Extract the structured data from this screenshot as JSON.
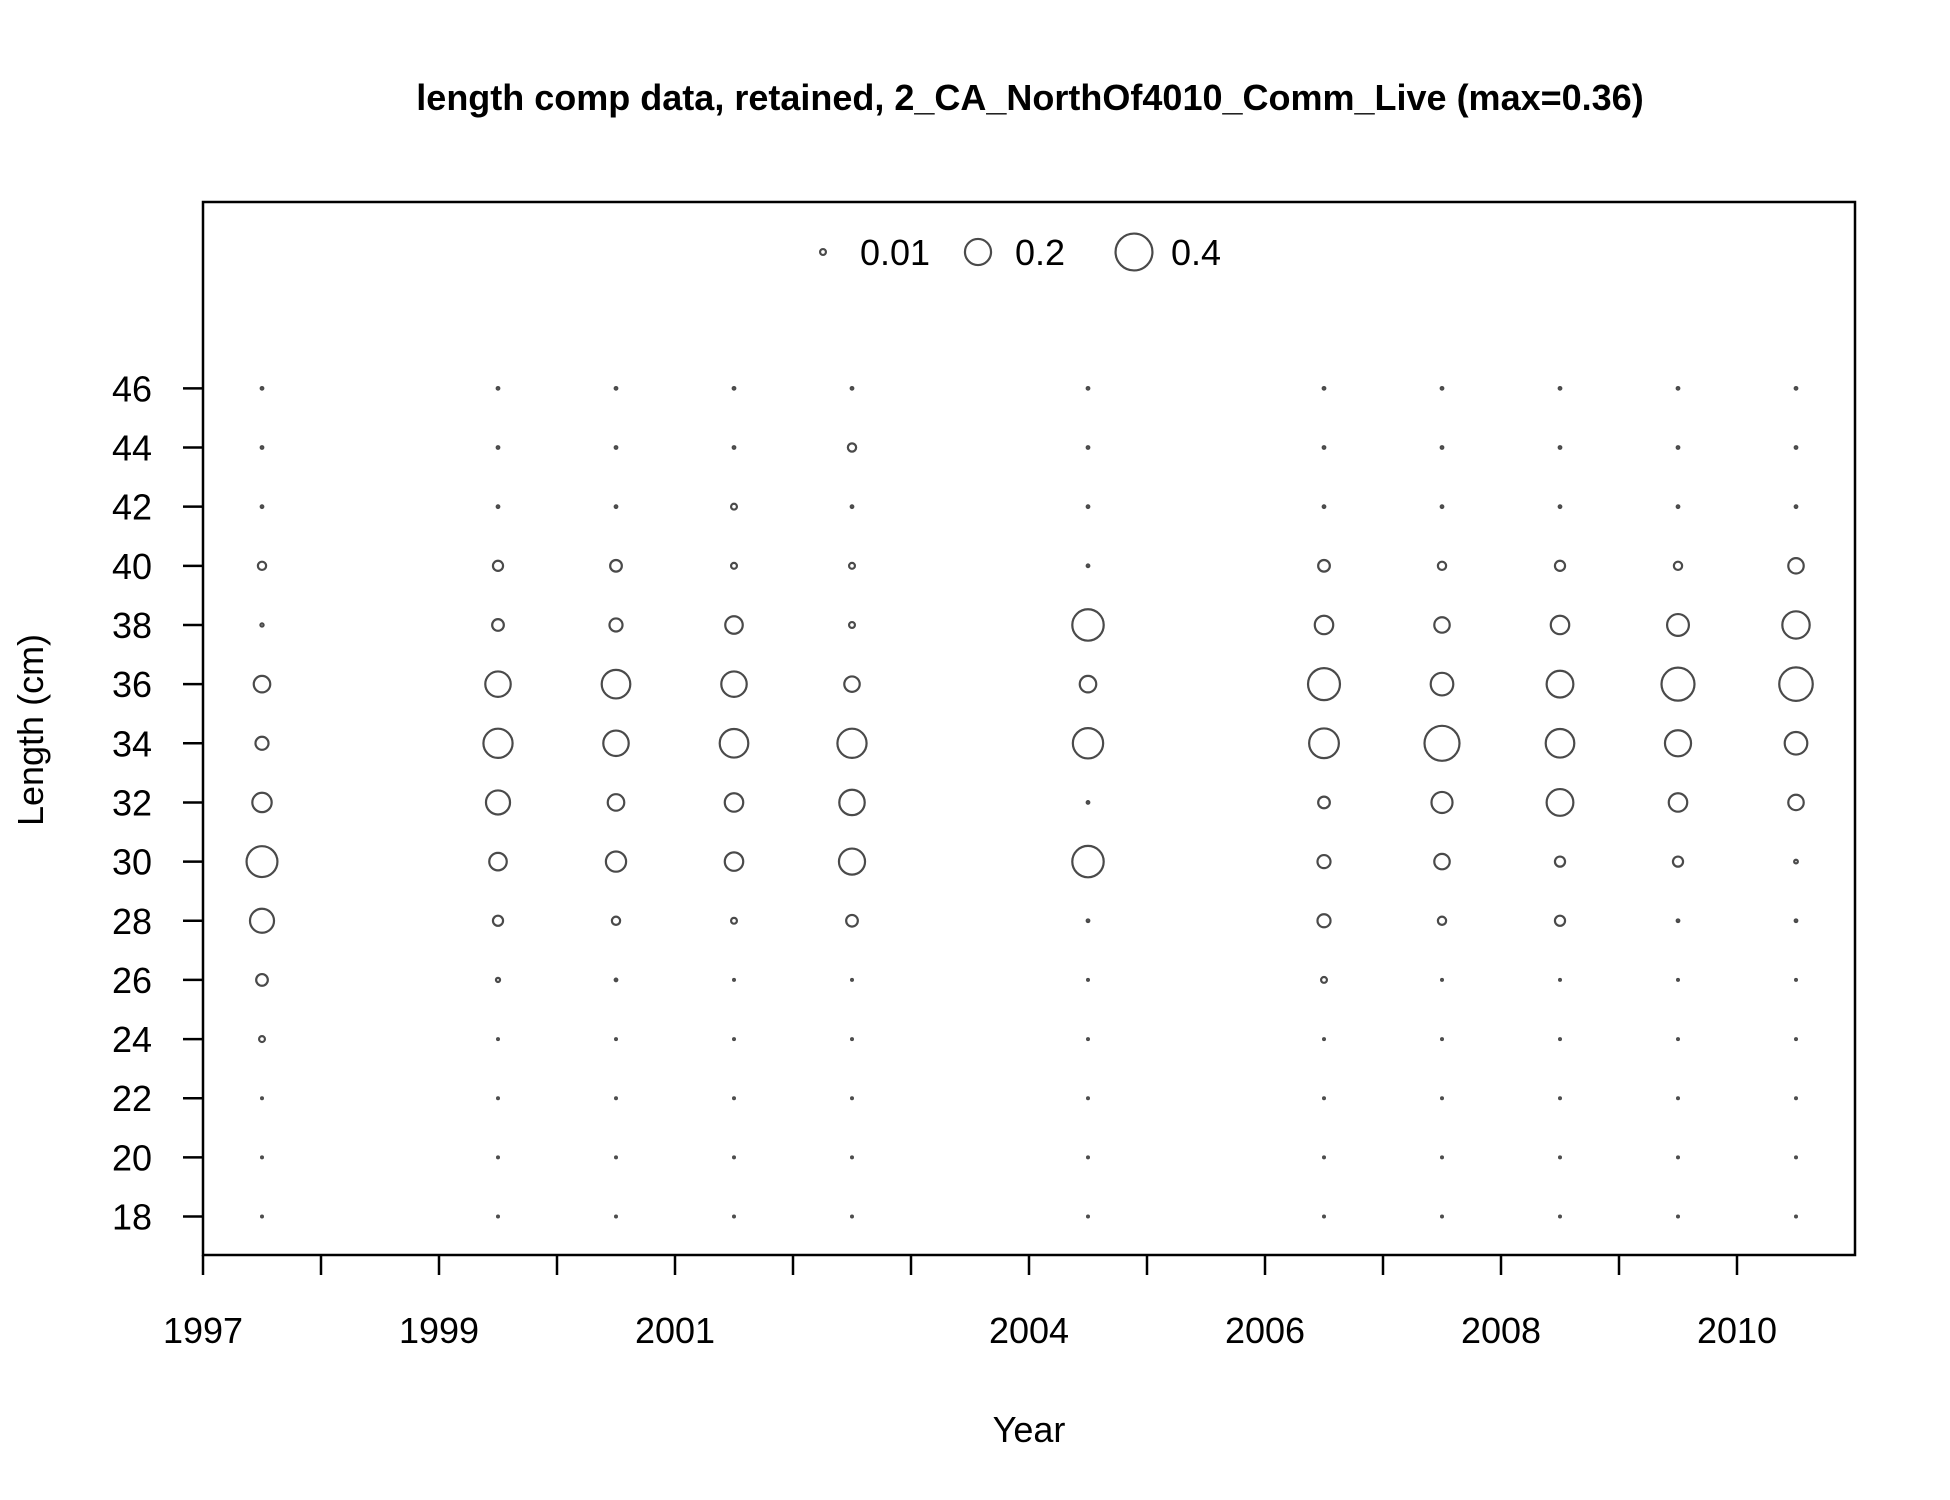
{
  "chart_data": {
    "type": "scatter",
    "title": "length comp data, retained, 2_CA_NorthOf4010_Comm_Live (max=0.36)",
    "xlabel": "Year",
    "ylabel": "Length (cm)",
    "xlim": [
      1997,
      2011
    ],
    "ylim": [
      16.7,
      52.3
    ],
    "x_ticks": [
      1997,
      1998,
      1999,
      2000,
      2001,
      2002,
      2003,
      2004,
      2005,
      2006,
      2007,
      2008,
      2009,
      2010
    ],
    "x_tick_labels": [
      "1997",
      "",
      "1999",
      "",
      "2001",
      "",
      "",
      "2004",
      "",
      "2006",
      "",
      "2008",
      "",
      "2010"
    ],
    "y_ticks": [
      18,
      20,
      22,
      24,
      26,
      28,
      30,
      32,
      34,
      36,
      38,
      40,
      42,
      44,
      46
    ],
    "y_tick_labels": [
      "18",
      "20",
      "22",
      "24",
      "26",
      "28",
      "30",
      "32",
      "34",
      "36",
      "38",
      "40",
      "42",
      "44",
      "46"
    ],
    "grid": false,
    "legend": {
      "placement": "top-center",
      "entries": [
        {
          "label": "0.01",
          "value": 0.01
        },
        {
          "label": "0.2",
          "value": 0.2
        },
        {
          "label": "0.4",
          "value": 0.4
        }
      ]
    },
    "size_scale_max": 0.36,
    "lengths": [
      18,
      20,
      22,
      24,
      26,
      28,
      30,
      32,
      34,
      36,
      38,
      40,
      42,
      44,
      46
    ],
    "series": [
      {
        "year": 1997.5,
        "values": [
          0,
          0,
          0,
          0.01,
          0.04,
          0.17,
          0.28,
          0.11,
          0.05,
          0.08,
          0.003,
          0.02,
          0.002,
          0.002,
          0.002
        ]
      },
      {
        "year": 1999.5,
        "values": [
          0,
          0,
          0,
          0,
          0.005,
          0.03,
          0.09,
          0.17,
          0.25,
          0.19,
          0.04,
          0.03,
          0.002,
          0.002,
          0.002
        ]
      },
      {
        "year": 2000.5,
        "values": [
          0,
          0,
          0,
          0,
          0.002,
          0.02,
          0.12,
          0.08,
          0.19,
          0.24,
          0.05,
          0.04,
          0.002,
          0.002,
          0.002
        ]
      },
      {
        "year": 2001.5,
        "values": [
          0,
          0,
          0,
          0,
          0,
          0.01,
          0.1,
          0.1,
          0.24,
          0.19,
          0.09,
          0.01,
          0.01,
          0.002,
          0.002
        ]
      },
      {
        "year": 2002.5,
        "values": [
          0,
          0,
          0,
          0,
          0,
          0.04,
          0.2,
          0.19,
          0.25,
          0.07,
          0.01,
          0.01,
          0.002,
          0.02,
          0.002
        ]
      },
      {
        "year": 2004.5,
        "values": [
          0,
          0,
          0,
          0,
          0,
          0.002,
          0.29,
          0.002,
          0.27,
          0.08,
          0.29,
          0.002,
          0.002,
          0.002,
          0.002
        ]
      },
      {
        "year": 2006.5,
        "values": [
          0,
          0,
          0,
          0,
          0.01,
          0.05,
          0.05,
          0.04,
          0.26,
          0.3,
          0.1,
          0.04,
          0.002,
          0.002,
          0.002
        ]
      },
      {
        "year": 2007.5,
        "values": [
          0,
          0,
          0,
          0,
          0,
          0.02,
          0.07,
          0.13,
          0.36,
          0.15,
          0.07,
          0.02,
          0.002,
          0.002,
          0.002
        ]
      },
      {
        "year": 2008.5,
        "values": [
          0,
          0,
          0,
          0,
          0,
          0.03,
          0.03,
          0.21,
          0.24,
          0.21,
          0.1,
          0.03,
          0.002,
          0.002,
          0.002
        ]
      },
      {
        "year": 2009.5,
        "values": [
          0,
          0,
          0,
          0,
          0,
          0.002,
          0.03,
          0.1,
          0.2,
          0.32,
          0.14,
          0.02,
          0.002,
          0.002,
          0.002
        ]
      },
      {
        "year": 2010.5,
        "values": [
          0,
          0,
          0,
          0,
          0,
          0.002,
          0.004,
          0.07,
          0.15,
          0.33,
          0.22,
          0.07,
          0.002,
          0.002,
          0.002
        ]
      }
    ]
  }
}
